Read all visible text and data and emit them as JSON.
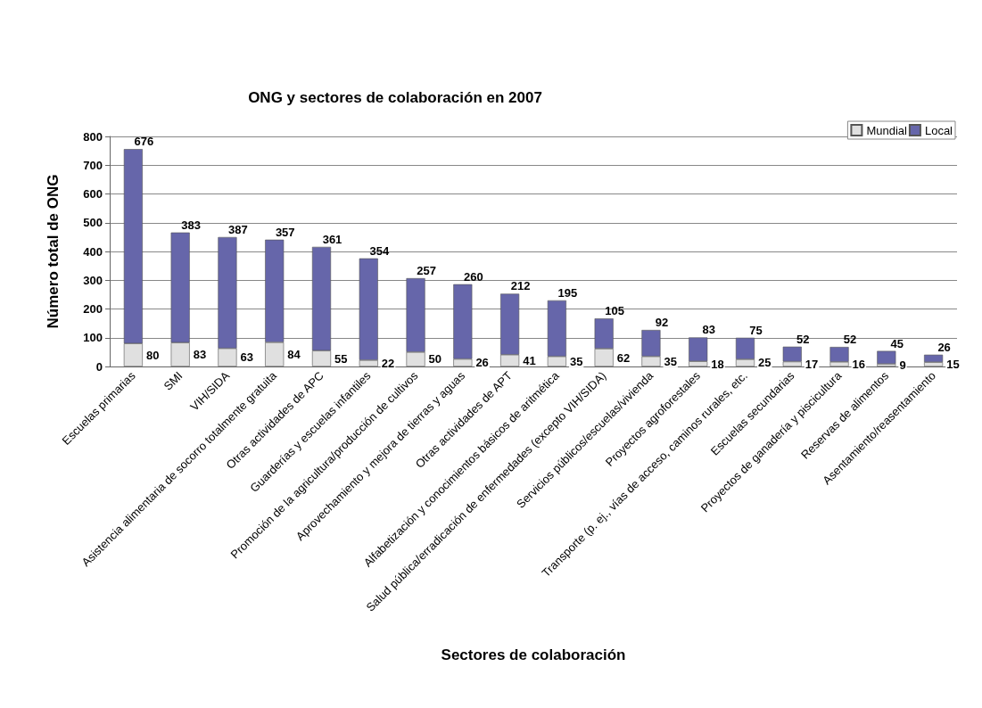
{
  "chart_data": {
    "type": "bar",
    "title": "ONG y sectores de colaboración en 2007",
    "xlabel": "Sectores de colaboración",
    "ylabel": "Número total de ONG",
    "categories": [
      "Escuelas primarias",
      "SMI",
      "VIH/SIDA",
      "Asistencia alimentaria de socorro totalmente gratuita",
      "Otras actividades de APC",
      "Guarderías y escuelas infantiles",
      "Promoción de la agricultura/producción de cultivos",
      "Aprovechamiento y mejora de tierras y aguas",
      "Otras actividades de APT",
      "Alfabetización y conocimientos básicos de aritmética",
      "Salud pública/erradicación de enfermedades (excepto VIH/SIDA)",
      "Servicios públicos/escuelas/vivienda",
      "Proyectos agroforestales",
      "Transporte (p. ej., vías de acceso, caminos rurales, etc.",
      "Escuelas secundarias",
      "Proyectos de ganadería y piscicultura",
      "Reservas de alimentos",
      "Asentamiento/reasentamiento"
    ],
    "series": [
      {
        "name": "Mundial",
        "color": "#e0e0e0",
        "values": [
          80,
          83,
          63,
          84,
          55,
          22,
          50,
          26,
          41,
          35,
          62,
          35,
          18,
          25,
          17,
          16,
          9,
          15
        ]
      },
      {
        "name": "Local",
        "color": "#6666aa",
        "values": [
          676,
          383,
          387,
          357,
          361,
          354,
          257,
          260,
          212,
          195,
          105,
          92,
          83,
          75,
          52,
          52,
          45,
          26
        ]
      }
    ],
    "stacked": true,
    "data_labels": true,
    "ylim": [
      0,
      800
    ],
    "yticks": [
      0,
      100,
      200,
      300,
      400,
      500,
      600,
      700,
      800
    ],
    "grid": "y",
    "legend": "top right"
  }
}
